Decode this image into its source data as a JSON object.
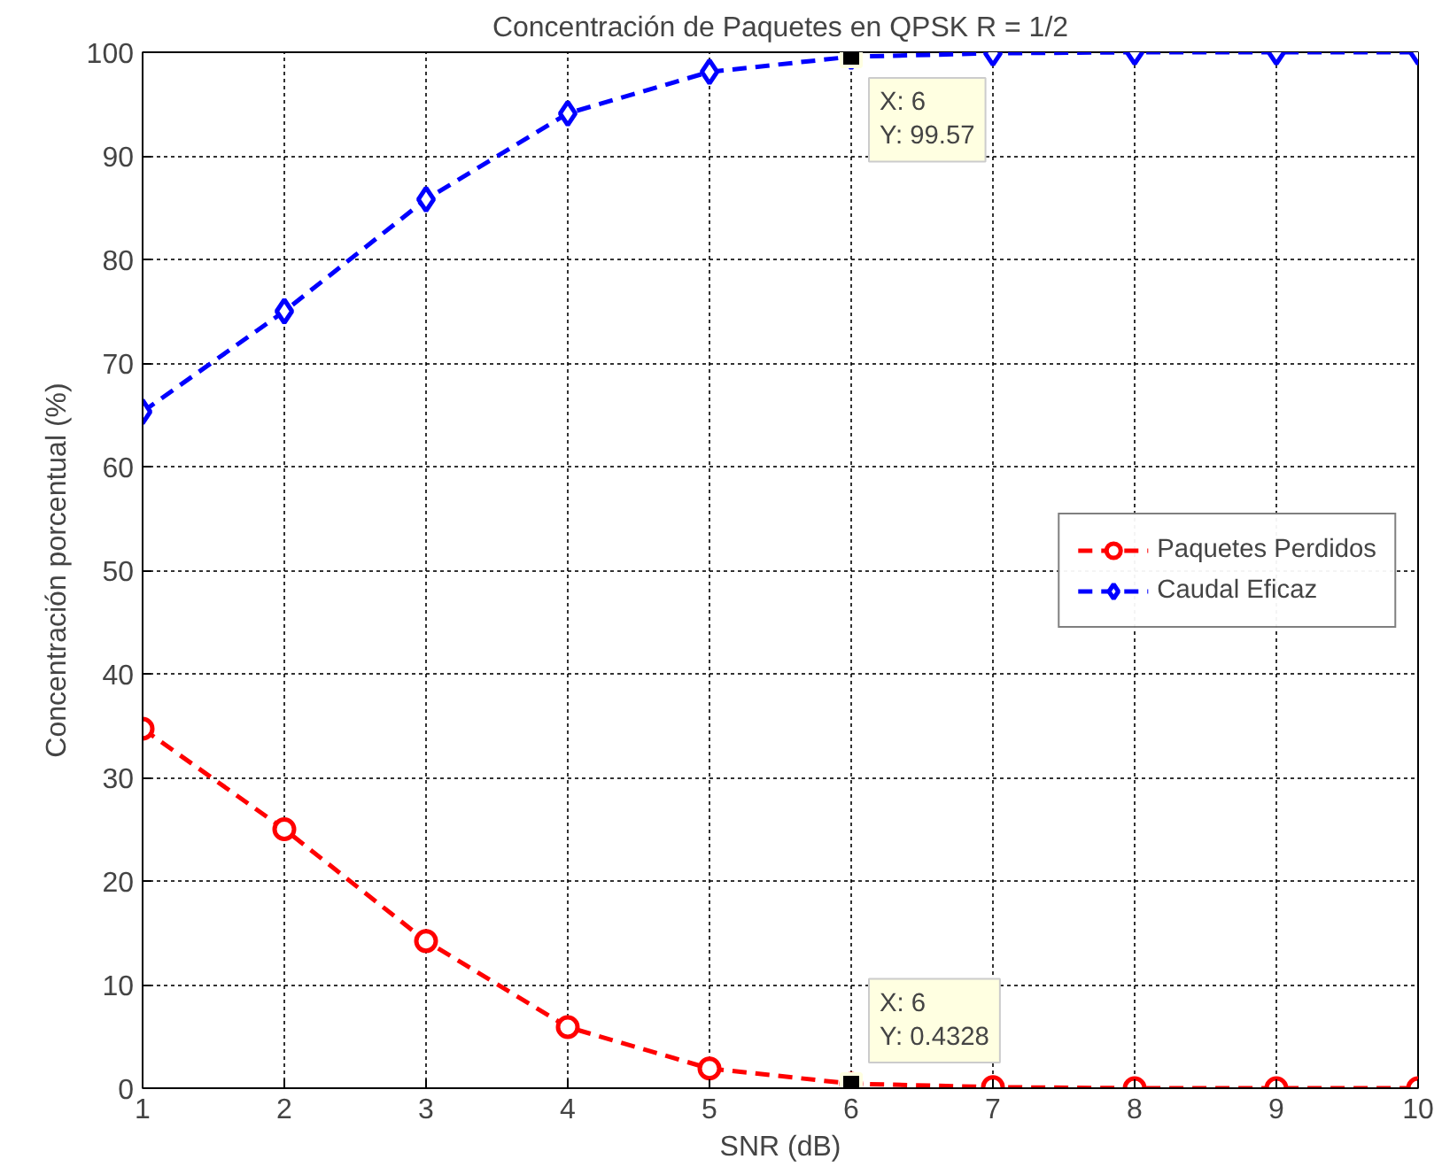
{
  "chart_data": {
    "type": "line",
    "title": "Concentración de Paquetes en QPSK R = 1/2",
    "xlabel": "SNR (dB)",
    "ylabel": "Concentración porcentual (%)",
    "x": [
      1,
      2,
      3,
      4,
      5,
      6,
      7,
      8,
      9,
      10
    ],
    "series": [
      {
        "name": "Paquetes Perdidos",
        "color": "#ff0000",
        "marker": "circle",
        "values": [
          34.7,
          25.0,
          14.2,
          5.9,
          1.9,
          0.4328,
          0.1,
          0,
          0,
          0
        ]
      },
      {
        "name": "Caudal Eficaz",
        "color": "#0000ff",
        "marker": "diamond",
        "values": [
          65.3,
          75.0,
          85.8,
          94.1,
          98.1,
          99.57,
          99.9,
          100,
          100,
          100
        ]
      }
    ],
    "xlim": [
      1,
      10
    ],
    "xticks": [
      1,
      2,
      3,
      4,
      5,
      6,
      7,
      8,
      9,
      10
    ],
    "ylim": [
      0,
      100
    ],
    "yticks": [
      0,
      10,
      20,
      30,
      40,
      50,
      60,
      70,
      80,
      90,
      100
    ],
    "grid": true,
    "legend": "right",
    "line_style": "dashed",
    "annotations": [
      {
        "text": "X: 6\nY: 99.57",
        "x": 6,
        "y": 99.57
      },
      {
        "text": "X: 6\nY: 0.4328",
        "x": 6,
        "y": 0.4328
      }
    ]
  }
}
